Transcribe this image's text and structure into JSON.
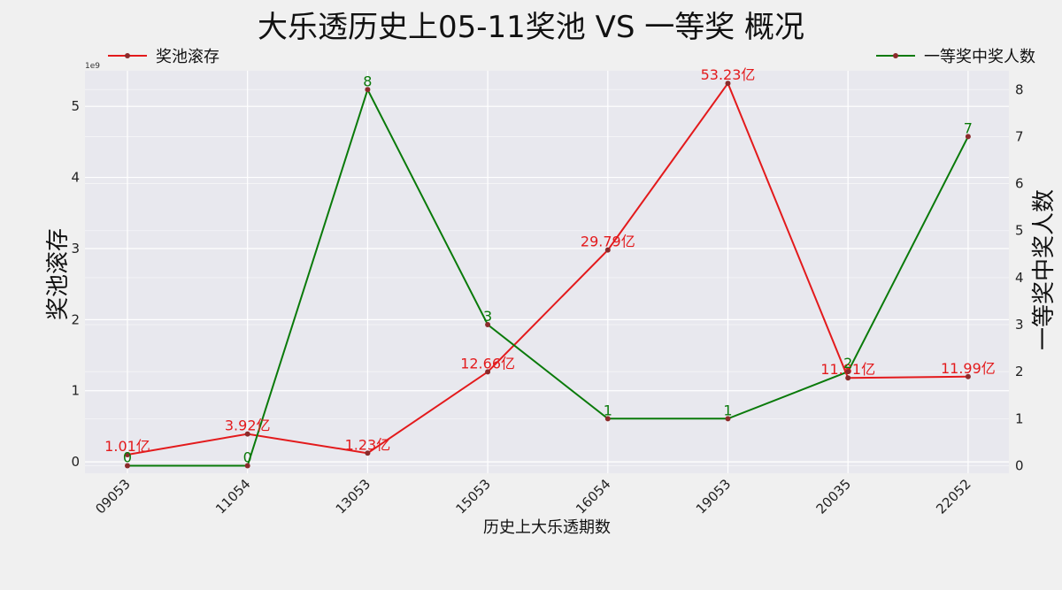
{
  "chart_data": {
    "type": "line",
    "title": "大乐透历史上05-11奖池 VS 一等奖 概况",
    "xlabel": "历史上大乐透期数",
    "ylabel_left": "奖池滚存",
    "ylabel_right": "一等奖中奖人数",
    "y_left_exponent": "1e9",
    "categories": [
      "09053",
      "11054",
      "13053",
      "15053",
      "16054",
      "19053",
      "20035",
      "22052"
    ],
    "y_left_ticks": [
      0,
      1,
      2,
      3,
      4,
      5
    ],
    "y_left_range": [
      -0.16,
      5.5
    ],
    "y_right_ticks": [
      0,
      1,
      2,
      3,
      4,
      5,
      6,
      7,
      8
    ],
    "y_right_range": [
      -0.16,
      8.4
    ],
    "grid": true,
    "series": [
      {
        "name": "奖池滚存",
        "axis": "left",
        "color": "#e31a1c",
        "values": [
          0.101,
          0.392,
          0.123,
          1.266,
          2.979,
          5.323,
          1.181,
          1.199
        ],
        "labels": [
          "1.01亿",
          "3.92亿",
          "1.23亿",
          "12.66亿",
          "29.79亿",
          "53.23亿",
          "11.81亿",
          "11.99亿"
        ]
      },
      {
        "name": "一等奖中奖人数",
        "axis": "right",
        "color": "#0a7a0a",
        "values": [
          0,
          0,
          8,
          3,
          1,
          1,
          2,
          7
        ],
        "labels": [
          "0",
          "0",
          "8",
          "3",
          "1",
          "1",
          "2",
          "7"
        ]
      }
    ],
    "legend": [
      "top-left",
      "top-right"
    ]
  }
}
